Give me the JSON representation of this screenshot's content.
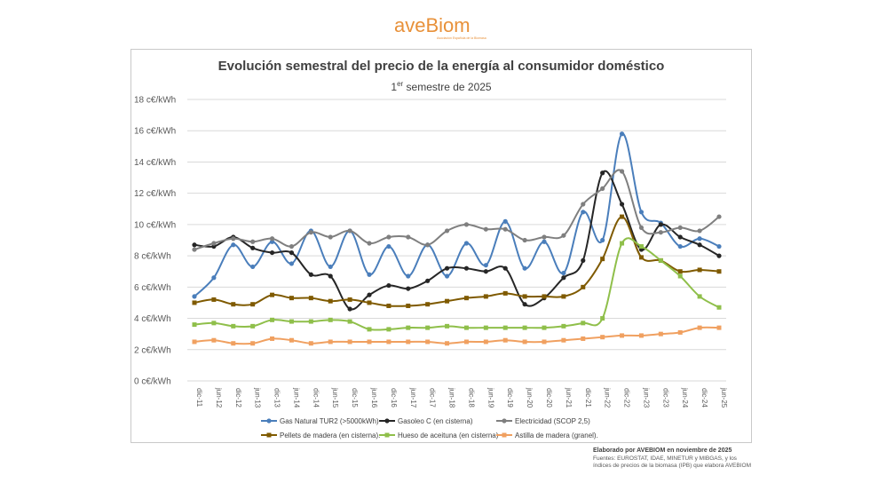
{
  "brand": {
    "name": "aveBiom",
    "tagline": "Asociación Española de la Biomasa",
    "color": "#e8913a"
  },
  "credit": {
    "line1": "Elaborado por AVEBIOM en noviembre de 2025",
    "line2": "Fuentes: EUROSTAT, IDAE, MINETUR y MIBGAS, y los índices de precios de la biomasa (IPB) que elabora AVEBIOM"
  },
  "chart_data": {
    "type": "line",
    "title": "Evolución semestral del precio de la energía al consumidor doméstico",
    "subtitle_num": "1",
    "subtitle_sup": "er",
    "subtitle_rest": " semestre de 2025",
    "xlabel": "",
    "ylabel": "",
    "ylim": [
      0,
      18
    ],
    "yticks": [
      0,
      2,
      4,
      6,
      8,
      10,
      12,
      14,
      16,
      18
    ],
    "ytick_labels": [
      "0 c€/kWh",
      "2 c€/kWh",
      "4 c€/kWh",
      "6 c€/kWh",
      "8 c€/kWh",
      "10 c€/kWh",
      "12 c€/kWh",
      "14 c€/kWh",
      "16 c€/kWh",
      "18 c€/kWh"
    ],
    "grid": true,
    "legend_position": "bottom",
    "categories": [
      "dic-11",
      "jun-12",
      "dic-12",
      "jun-13",
      "dic-13",
      "jun-14",
      "dic-14",
      "jun-15",
      "dic-15",
      "jun-16",
      "dic-16",
      "jun-17",
      "dic-17",
      "jun-18",
      "dic-18",
      "jun-19",
      "dic-19",
      "jun-20",
      "dic-20",
      "jun-21",
      "dic-21",
      "jun-22",
      "dic-22",
      "jun-23",
      "dic-23",
      "jun-24",
      "dic-24",
      "jun-25"
    ],
    "series": [
      {
        "name": "Gas Natural TUR2 (>5000kWh)",
        "color": "#4a7ebb",
        "marker": "circle",
        "values": [
          5.4,
          6.6,
          8.7,
          7.3,
          8.9,
          7.5,
          9.6,
          7.3,
          9.6,
          6.8,
          8.6,
          6.7,
          8.7,
          6.7,
          8.8,
          7.4,
          10.2,
          7.2,
          8.9,
          6.9,
          10.8,
          9.0,
          15.8,
          10.8,
          10.1,
          8.6,
          9.1,
          8.6
        ]
      },
      {
        "name": "Gasoleo C (en cisterna)",
        "color": "#262626",
        "marker": "circle",
        "values": [
          8.7,
          8.6,
          9.2,
          8.5,
          8.2,
          8.2,
          6.8,
          6.7,
          4.6,
          5.5,
          6.1,
          5.9,
          6.4,
          7.2,
          7.2,
          7.0,
          7.2,
          4.9,
          5.3,
          6.6,
          7.7,
          13.3,
          11.3,
          8.4,
          10.0,
          9.2,
          8.7,
          8.0
        ]
      },
      {
        "name": "Electricidad (SCOP 2,5)",
        "color": "#7f7f7f",
        "marker": "circle",
        "values": [
          8.4,
          8.8,
          9.1,
          8.9,
          9.1,
          8.6,
          9.5,
          9.2,
          9.6,
          8.8,
          9.2,
          9.2,
          8.7,
          9.6,
          10.0,
          9.7,
          9.7,
          9.0,
          9.2,
          9.3,
          11.3,
          12.3,
          13.4,
          9.8,
          9.5,
          9.8,
          9.6,
          10.5
        ]
      },
      {
        "name": "Pellets de madera (en cisterna).",
        "color": "#7f5a00",
        "marker": "square",
        "values": [
          5.0,
          5.2,
          4.9,
          4.9,
          5.5,
          5.3,
          5.3,
          5.1,
          5.2,
          5.0,
          4.8,
          4.8,
          4.9,
          5.1,
          5.3,
          5.4,
          5.6,
          5.4,
          5.4,
          5.4,
          6.0,
          7.8,
          10.5,
          7.9,
          7.7,
          7.0,
          7.1,
          7.0
        ]
      },
      {
        "name": "Hueso de aceituna (en cisterna)",
        "color": "#8fbf4a",
        "marker": "square",
        "values": [
          3.6,
          3.7,
          3.5,
          3.5,
          3.9,
          3.8,
          3.8,
          3.9,
          3.8,
          3.3,
          3.3,
          3.4,
          3.4,
          3.5,
          3.4,
          3.4,
          3.4,
          3.4,
          3.4,
          3.5,
          3.7,
          4.0,
          8.8,
          8.6,
          7.7,
          6.7,
          5.4,
          4.7
        ]
      },
      {
        "name": "Astilla de madera (granel).",
        "color": "#f0a060",
        "marker": "square",
        "values": [
          2.5,
          2.6,
          2.4,
          2.4,
          2.7,
          2.6,
          2.4,
          2.5,
          2.5,
          2.5,
          2.5,
          2.5,
          2.5,
          2.4,
          2.5,
          2.5,
          2.6,
          2.5,
          2.5,
          2.6,
          2.7,
          2.8,
          2.9,
          2.9,
          3.0,
          3.1,
          3.4,
          3.4
        ]
      }
    ]
  }
}
